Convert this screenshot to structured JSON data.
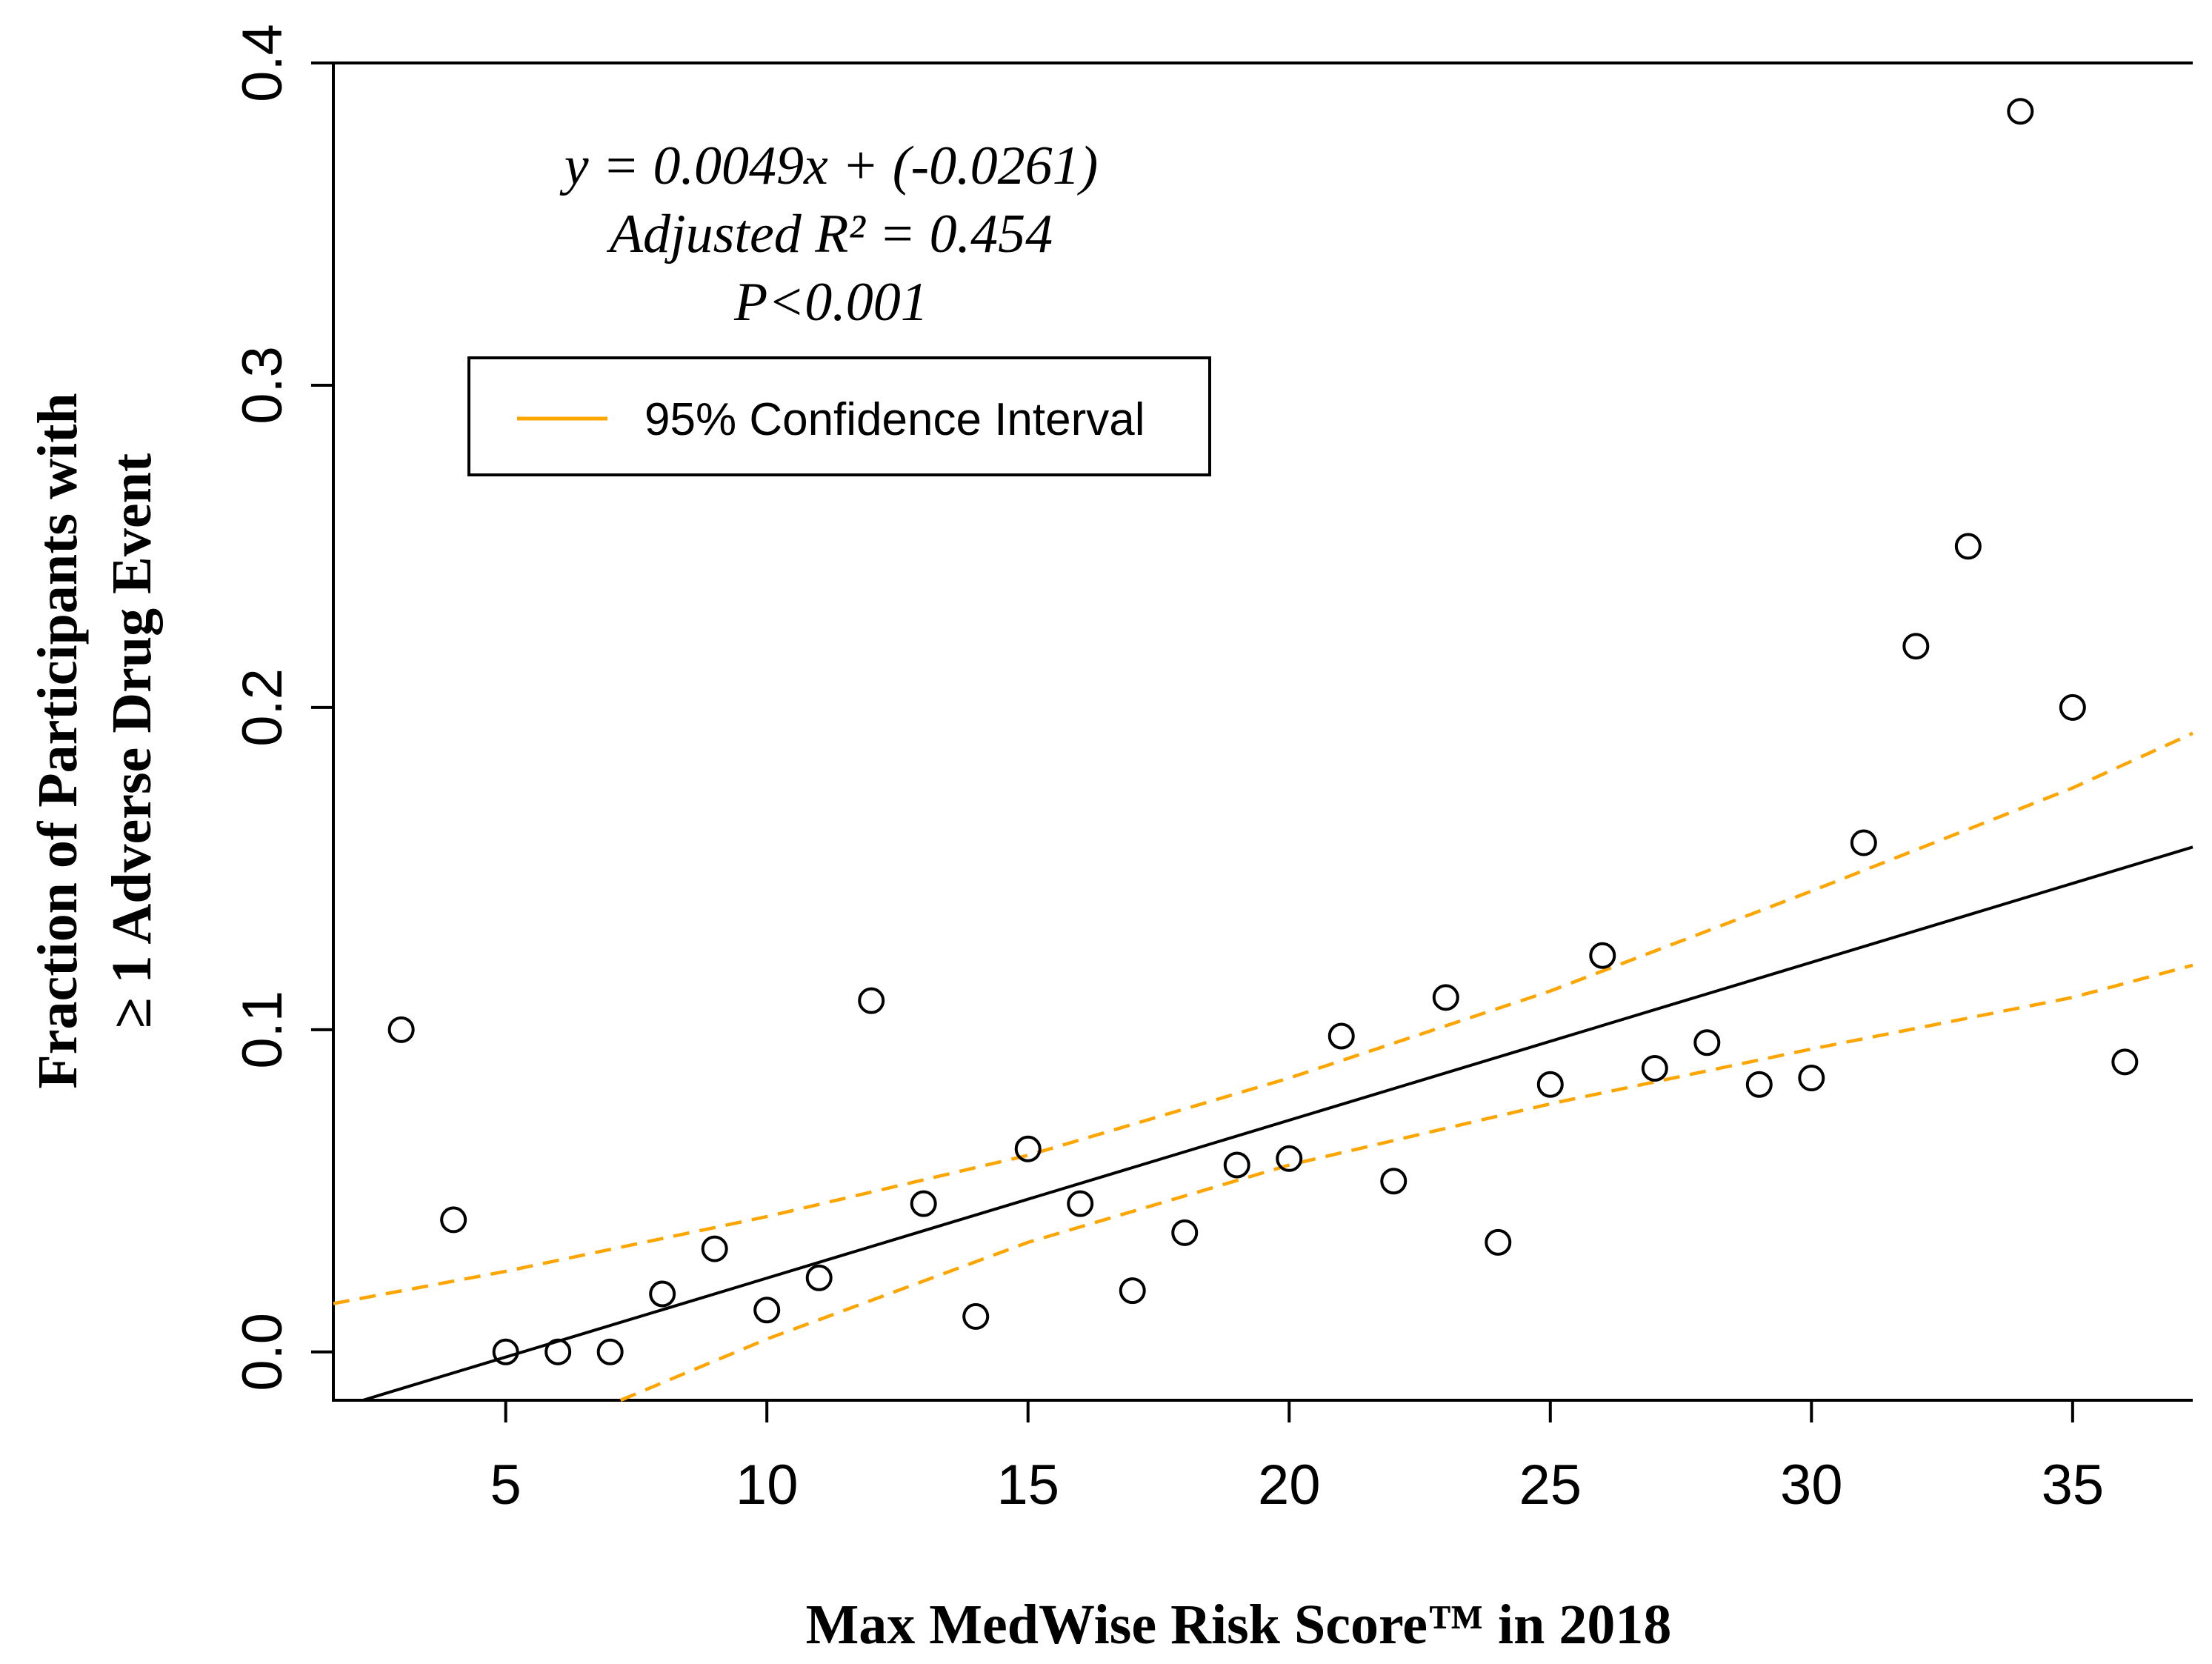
{
  "chart_data": {
    "type": "scatter",
    "title": "",
    "xlabel": "Max MedWise Risk Score™ in 2018",
    "ylabel_lines": [
      "Fraction of Participants with",
      "≥ 1 Adverse Drug Event"
    ],
    "xlim": [
      1.7,
      37.3
    ],
    "ylim": [
      -0.015,
      0.4
    ],
    "x_ticks": [
      5,
      10,
      15,
      20,
      25,
      30,
      35
    ],
    "x_tick_labels": [
      "5",
      "10",
      "15",
      "20",
      "25",
      "30",
      "35"
    ],
    "y_ticks": [
      0.0,
      0.1,
      0.2,
      0.3,
      0.4
    ],
    "y_tick_labels": [
      "0.0",
      "0.1",
      "0.2",
      "0.3",
      "0.4"
    ],
    "grid": false,
    "series": [
      {
        "name": "Observed fraction",
        "marker": "open-circle",
        "x": [
          3,
          4,
          5,
          6,
          7,
          8,
          9,
          10,
          11,
          12,
          13,
          14,
          15,
          16,
          17,
          18,
          19,
          20,
          21,
          22,
          23,
          24,
          25,
          26,
          27,
          28,
          29,
          30,
          31,
          32,
          33,
          34,
          35,
          36
        ],
        "y": [
          0.1,
          0.041,
          0.0,
          0.0,
          0.0,
          0.018,
          0.032,
          0.013,
          0.023,
          0.109,
          0.046,
          0.011,
          0.063,
          0.046,
          0.019,
          0.037,
          0.058,
          0.06,
          0.098,
          0.053,
          0.11,
          0.034,
          0.083,
          0.123,
          0.088,
          0.096,
          0.083,
          0.085,
          0.158,
          0.219,
          0.25,
          0.385,
          0.2,
          0.09
        ]
      },
      {
        "name": "Regression line",
        "type": "line",
        "slope": 0.0049,
        "intercept": -0.0261
      },
      {
        "name": "95% Confidence Interval (upper)",
        "type": "line",
        "color": "#FFA500",
        "x": [
          1.7,
          5,
          10,
          15,
          20,
          25,
          30,
          35,
          37.3
        ],
        "y": [
          0.015,
          0.025,
          0.042,
          0.061,
          0.085,
          0.112,
          0.143,
          0.175,
          0.192
        ]
      },
      {
        "name": "95% Confidence Interval (lower)",
        "type": "line",
        "color": "#FFA500",
        "x": [
          7.2,
          10,
          15,
          20,
          25,
          30,
          35,
          37.3
        ],
        "y": [
          -0.015,
          0.004,
          0.034,
          0.058,
          0.077,
          0.094,
          0.11,
          0.12
        ]
      }
    ],
    "annotations": [
      "y = 0.0049x + (-0.0261)",
      "Adjusted R² = 0.454",
      "P<0.001"
    ],
    "legend": {
      "position": "top-left",
      "entries": [
        {
          "label": "95% Confidence Interval",
          "color": "#FFA500"
        }
      ]
    }
  }
}
